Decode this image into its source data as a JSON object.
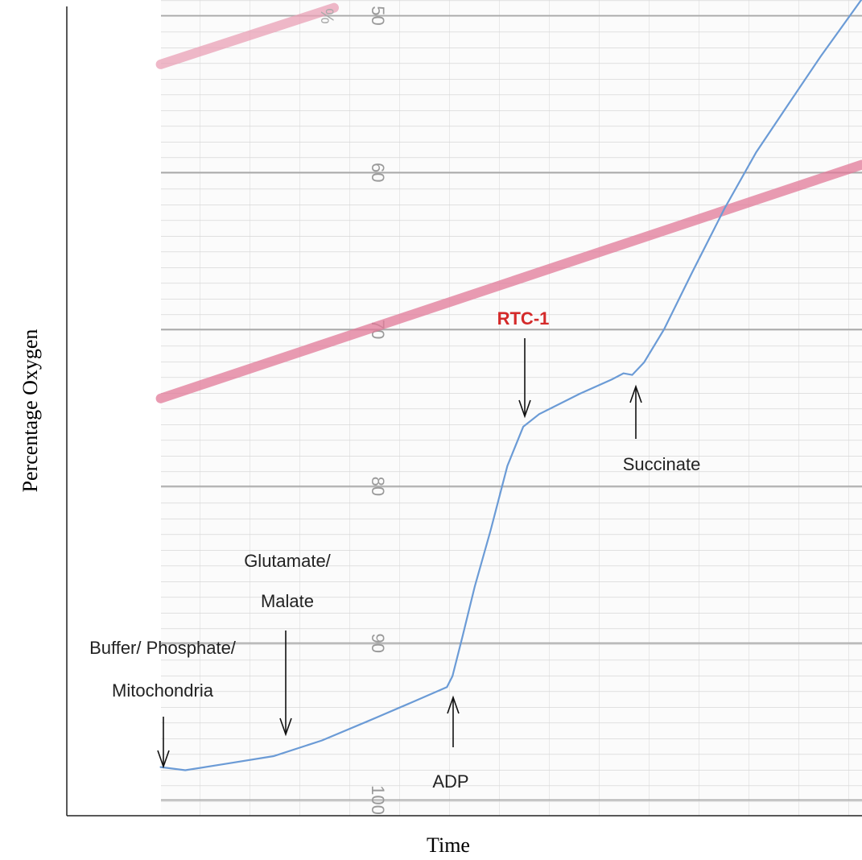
{
  "chart_data": {
    "type": "line",
    "ylabel": "Percentage Oxygen",
    "xlabel": "Time",
    "unit_label": "%",
    "xlim": [
      0,
      100
    ],
    "ylim": [
      101,
      49
    ],
    "yticks": [
      50,
      60,
      70,
      80,
      90,
      100
    ],
    "grid": true,
    "series": [
      {
        "color": "#6b9bd6",
        "x": [
          11.8,
          14.9,
          19.9,
          26.0,
          32.1,
          38.2,
          44.2,
          47.8,
          48.5,
          49.8,
          51.3,
          53.3,
          55.4,
          57.4,
          59.4,
          64.5,
          68.5,
          70.0,
          71.1,
          72.6,
          75.1,
          78.6,
          82.7,
          86.7,
          90.8,
          94.8,
          99.9
        ],
        "values": [
          97.9,
          98.1,
          97.7,
          97.2,
          96.2,
          94.9,
          93.6,
          92.8,
          92.1,
          89.5,
          86.4,
          82.8,
          78.7,
          76.2,
          75.4,
          74.1,
          73.2,
          72.8,
          72.9,
          72.1,
          70.0,
          66.4,
          62.3,
          58.7,
          55.6,
          52.6,
          49.0
        ]
      },
      {
        "color": "#e27a98",
        "x": [
          11.8,
          100
        ],
        "values": [
          74.4,
          59.5
        ]
      },
      {
        "color": "#e9a0b5",
        "x": [
          11.8,
          33.6
        ],
        "values": [
          53.1,
          49.5
        ]
      }
    ],
    "annotations": [
      {
        "lines": [
          "Buffer/ Phosphate/",
          "Mitochondria"
        ],
        "color": "#222222"
      },
      {
        "lines": [
          "Glutamate/",
          "Malate"
        ],
        "color": "#222222"
      },
      {
        "lines": [
          "ADP"
        ],
        "color": "#222222"
      },
      {
        "lines": [
          "RTC-1"
        ],
        "color": "#d42a2a"
      },
      {
        "lines": [
          "Succinate"
        ],
        "color": "#222222"
      }
    ]
  }
}
